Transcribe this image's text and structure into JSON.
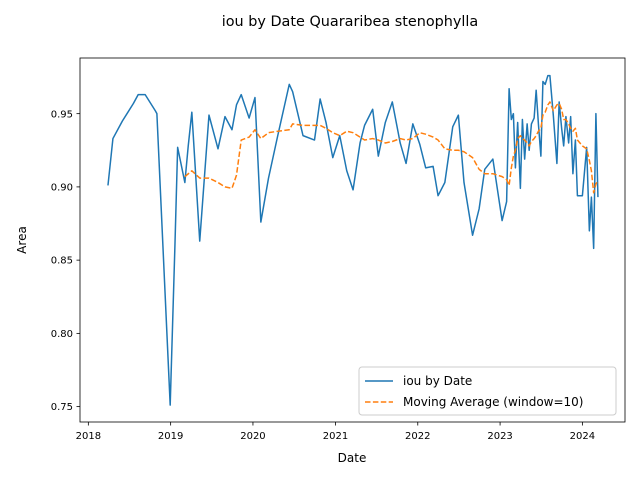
{
  "chart_data": {
    "type": "line",
    "title": "iou by Date Quararibea stenophylla",
    "xlabel": "Date",
    "ylabel": "Area",
    "x_type": "date",
    "xlim": [
      "2017-11-25",
      "2024-07-08"
    ],
    "ylim": [
      0.7395,
      0.988
    ],
    "x_ticks": [
      {
        "date": "2018-01-01",
        "label": "2018"
      },
      {
        "date": "2019-01-01",
        "label": "2019"
      },
      {
        "date": "2020-01-01",
        "label": "2020"
      },
      {
        "date": "2021-01-01",
        "label": "2021"
      },
      {
        "date": "2022-01-01",
        "label": "2022"
      },
      {
        "date": "2023-01-01",
        "label": "2023"
      },
      {
        "date": "2024-01-01",
        "label": "2024"
      }
    ],
    "y_ticks": [
      0.75,
      0.8,
      0.85,
      0.9,
      0.95
    ],
    "y_tick_labels": [
      "0.75",
      "0.80",
      "0.85",
      "0.90",
      "0.95"
    ],
    "grid": false,
    "legend_position": "lower-right",
    "series": [
      {
        "name": "iou by Date",
        "color": "#1f77b4",
        "style": "solid",
        "points": [
          [
            "2018-03-29",
            0.901
          ],
          [
            "2018-04-20",
            0.933
          ],
          [
            "2018-06-01",
            0.945
          ],
          [
            "2018-07-20",
            0.957
          ],
          [
            "2018-08-10",
            0.963
          ],
          [
            "2018-09-10",
            0.963
          ],
          [
            "2018-10-25",
            0.952
          ],
          [
            "2018-11-01",
            0.95
          ],
          [
            "2018-12-05",
            0.835
          ],
          [
            "2018-12-30",
            0.751
          ],
          [
            "2019-01-20",
            0.86
          ],
          [
            "2019-02-01",
            0.927
          ],
          [
            "2019-03-05",
            0.903
          ],
          [
            "2019-03-20",
            0.928
          ],
          [
            "2019-04-05",
            0.951
          ],
          [
            "2019-05-10",
            0.863
          ],
          [
            "2019-06-20",
            0.949
          ],
          [
            "2019-07-30",
            0.926
          ],
          [
            "2019-08-30",
            0.948
          ],
          [
            "2019-09-30",
            0.939
          ],
          [
            "2019-10-20",
            0.956
          ],
          [
            "2019-11-10",
            0.963
          ],
          [
            "2019-12-15",
            0.947
          ],
          [
            "2020-01-10",
            0.961
          ],
          [
            "2020-02-05",
            0.876
          ],
          [
            "2020-03-10",
            0.906
          ],
          [
            "2020-04-20",
            0.935
          ],
          [
            "2020-06-10",
            0.97
          ],
          [
            "2020-06-25",
            0.965
          ],
          [
            "2020-08-10",
            0.935
          ],
          [
            "2020-09-30",
            0.932
          ],
          [
            "2020-10-25",
            0.96
          ],
          [
            "2020-11-20",
            0.944
          ],
          [
            "2020-12-20",
            0.92
          ],
          [
            "2021-01-20",
            0.935
          ],
          [
            "2021-02-20",
            0.911
          ],
          [
            "2021-03-20",
            0.898
          ],
          [
            "2021-04-20",
            0.93
          ],
          [
            "2021-05-10",
            0.942
          ],
          [
            "2021-06-15",
            0.953
          ],
          [
            "2021-07-10",
            0.921
          ],
          [
            "2021-08-10",
            0.944
          ],
          [
            "2021-09-10",
            0.958
          ],
          [
            "2021-10-15",
            0.93
          ],
          [
            "2021-11-10",
            0.916
          ],
          [
            "2021-12-10",
            0.943
          ],
          [
            "2022-01-10",
            0.929
          ],
          [
            "2022-02-05",
            0.913
          ],
          [
            "2022-03-10",
            0.914
          ],
          [
            "2022-04-01",
            0.894
          ],
          [
            "2022-05-01",
            0.903
          ],
          [
            "2022-06-05",
            0.941
          ],
          [
            "2022-06-30",
            0.949
          ],
          [
            "2022-07-25",
            0.903
          ],
          [
            "2022-09-01",
            0.867
          ],
          [
            "2022-09-30",
            0.885
          ],
          [
            "2022-10-25",
            0.912
          ],
          [
            "2022-11-30",
            0.919
          ],
          [
            "2023-01-10",
            0.877
          ],
          [
            "2023-01-30",
            0.89
          ],
          [
            "2023-02-10",
            0.967
          ],
          [
            "2023-02-20",
            0.946
          ],
          [
            "2023-03-01",
            0.95
          ],
          [
            "2023-03-10",
            0.913
          ],
          [
            "2023-03-20",
            0.944
          ],
          [
            "2023-04-01",
            0.899
          ],
          [
            "2023-04-10",
            0.946
          ],
          [
            "2023-04-20",
            0.919
          ],
          [
            "2023-05-01",
            0.943
          ],
          [
            "2023-05-10",
            0.925
          ],
          [
            "2023-05-20",
            0.943
          ],
          [
            "2023-06-01",
            0.947
          ],
          [
            "2023-06-10",
            0.966
          ],
          [
            "2023-06-20",
            0.943
          ],
          [
            "2023-07-01",
            0.921
          ],
          [
            "2023-07-10",
            0.972
          ],
          [
            "2023-07-20",
            0.97
          ],
          [
            "2023-08-01",
            0.976
          ],
          [
            "2023-08-10",
            0.976
          ],
          [
            "2023-08-25",
            0.949
          ],
          [
            "2023-09-10",
            0.916
          ],
          [
            "2023-09-20",
            0.958
          ],
          [
            "2023-10-01",
            0.94
          ],
          [
            "2023-10-10",
            0.928
          ],
          [
            "2023-10-20",
            0.948
          ],
          [
            "2023-11-01",
            0.93
          ],
          [
            "2023-11-10",
            0.948
          ],
          [
            "2023-11-20",
            0.909
          ],
          [
            "2023-12-01",
            0.932
          ],
          [
            "2023-12-10",
            0.894
          ],
          [
            "2024-01-01",
            0.894
          ],
          [
            "2024-01-20",
            0.927
          ],
          [
            "2024-02-01",
            0.87
          ],
          [
            "2024-02-10",
            0.893
          ],
          [
            "2024-02-20",
            0.858
          ],
          [
            "2024-03-01",
            0.95
          ],
          [
            "2024-03-10",
            0.893
          ]
        ]
      },
      {
        "name": "Moving Average (window=10)",
        "color": "#ff7f0e",
        "style": "dashed",
        "points": [
          [
            "2019-03-05",
            0.907
          ],
          [
            "2019-04-05",
            0.911
          ],
          [
            "2019-05-10",
            0.906
          ],
          [
            "2019-06-20",
            0.906
          ],
          [
            "2019-07-30",
            0.903
          ],
          [
            "2019-08-30",
            0.9
          ],
          [
            "2019-09-30",
            0.899
          ],
          [
            "2019-10-20",
            0.908
          ],
          [
            "2019-11-10",
            0.932
          ],
          [
            "2019-12-15",
            0.934
          ],
          [
            "2020-01-10",
            0.939
          ],
          [
            "2020-02-05",
            0.933
          ],
          [
            "2020-03-10",
            0.937
          ],
          [
            "2020-04-20",
            0.938
          ],
          [
            "2020-06-10",
            0.939
          ],
          [
            "2020-06-25",
            0.943
          ],
          [
            "2020-08-10",
            0.942
          ],
          [
            "2020-09-30",
            0.942
          ],
          [
            "2020-10-25",
            0.942
          ],
          [
            "2020-11-20",
            0.94
          ],
          [
            "2020-12-20",
            0.937
          ],
          [
            "2021-01-20",
            0.935
          ],
          [
            "2021-02-20",
            0.938
          ],
          [
            "2021-03-20",
            0.937
          ],
          [
            "2021-04-20",
            0.934
          ],
          [
            "2021-05-10",
            0.932
          ],
          [
            "2021-06-15",
            0.933
          ],
          [
            "2021-07-10",
            0.932
          ],
          [
            "2021-08-10",
            0.93
          ],
          [
            "2021-09-10",
            0.931
          ],
          [
            "2021-10-15",
            0.933
          ],
          [
            "2021-11-10",
            0.932
          ],
          [
            "2021-12-10",
            0.933
          ],
          [
            "2022-01-10",
            0.937
          ],
          [
            "2022-02-05",
            0.936
          ],
          [
            "2022-03-10",
            0.934
          ],
          [
            "2022-04-01",
            0.932
          ],
          [
            "2022-05-01",
            0.926
          ],
          [
            "2022-06-05",
            0.925
          ],
          [
            "2022-06-30",
            0.925
          ],
          [
            "2022-07-25",
            0.924
          ],
          [
            "2022-09-01",
            0.92
          ],
          [
            "2022-09-30",
            0.912
          ],
          [
            "2022-10-25",
            0.909
          ],
          [
            "2022-11-30",
            0.909
          ],
          [
            "2023-01-10",
            0.907
          ],
          [
            "2023-01-30",
            0.905
          ],
          [
            "2023-02-10",
            0.901
          ],
          [
            "2023-02-20",
            0.913
          ],
          [
            "2023-03-01",
            0.921
          ],
          [
            "2023-03-10",
            0.925
          ],
          [
            "2023-03-20",
            0.933
          ],
          [
            "2023-04-01",
            0.935
          ],
          [
            "2023-04-10",
            0.933
          ],
          [
            "2023-04-20",
            0.932
          ],
          [
            "2023-05-01",
            0.93
          ],
          [
            "2023-05-10",
            0.928
          ],
          [
            "2023-05-20",
            0.931
          ],
          [
            "2023-06-01",
            0.933
          ],
          [
            "2023-06-10",
            0.935
          ],
          [
            "2023-06-20",
            0.938
          ],
          [
            "2023-07-01",
            0.94
          ],
          [
            "2023-07-10",
            0.949
          ],
          [
            "2023-07-20",
            0.951
          ],
          [
            "2023-08-01",
            0.956
          ],
          [
            "2023-08-10",
            0.958
          ],
          [
            "2023-08-25",
            0.952
          ],
          [
            "2023-09-10",
            0.956
          ],
          [
            "2023-09-20",
            0.957
          ],
          [
            "2023-10-01",
            0.953
          ],
          [
            "2023-10-10",
            0.946
          ],
          [
            "2023-10-20",
            0.946
          ],
          [
            "2023-11-01",
            0.943
          ],
          [
            "2023-11-10",
            0.94
          ],
          [
            "2023-11-20",
            0.938
          ],
          [
            "2023-12-01",
            0.94
          ],
          [
            "2023-12-10",
            0.932
          ],
          [
            "2024-01-01",
            0.928
          ],
          [
            "2024-01-20",
            0.926
          ],
          [
            "2024-02-01",
            0.918
          ],
          [
            "2024-02-10",
            0.911
          ],
          [
            "2024-02-20",
            0.896
          ],
          [
            "2024-03-01",
            0.902
          ],
          [
            "2024-03-10",
            0.904
          ]
        ]
      }
    ]
  }
}
